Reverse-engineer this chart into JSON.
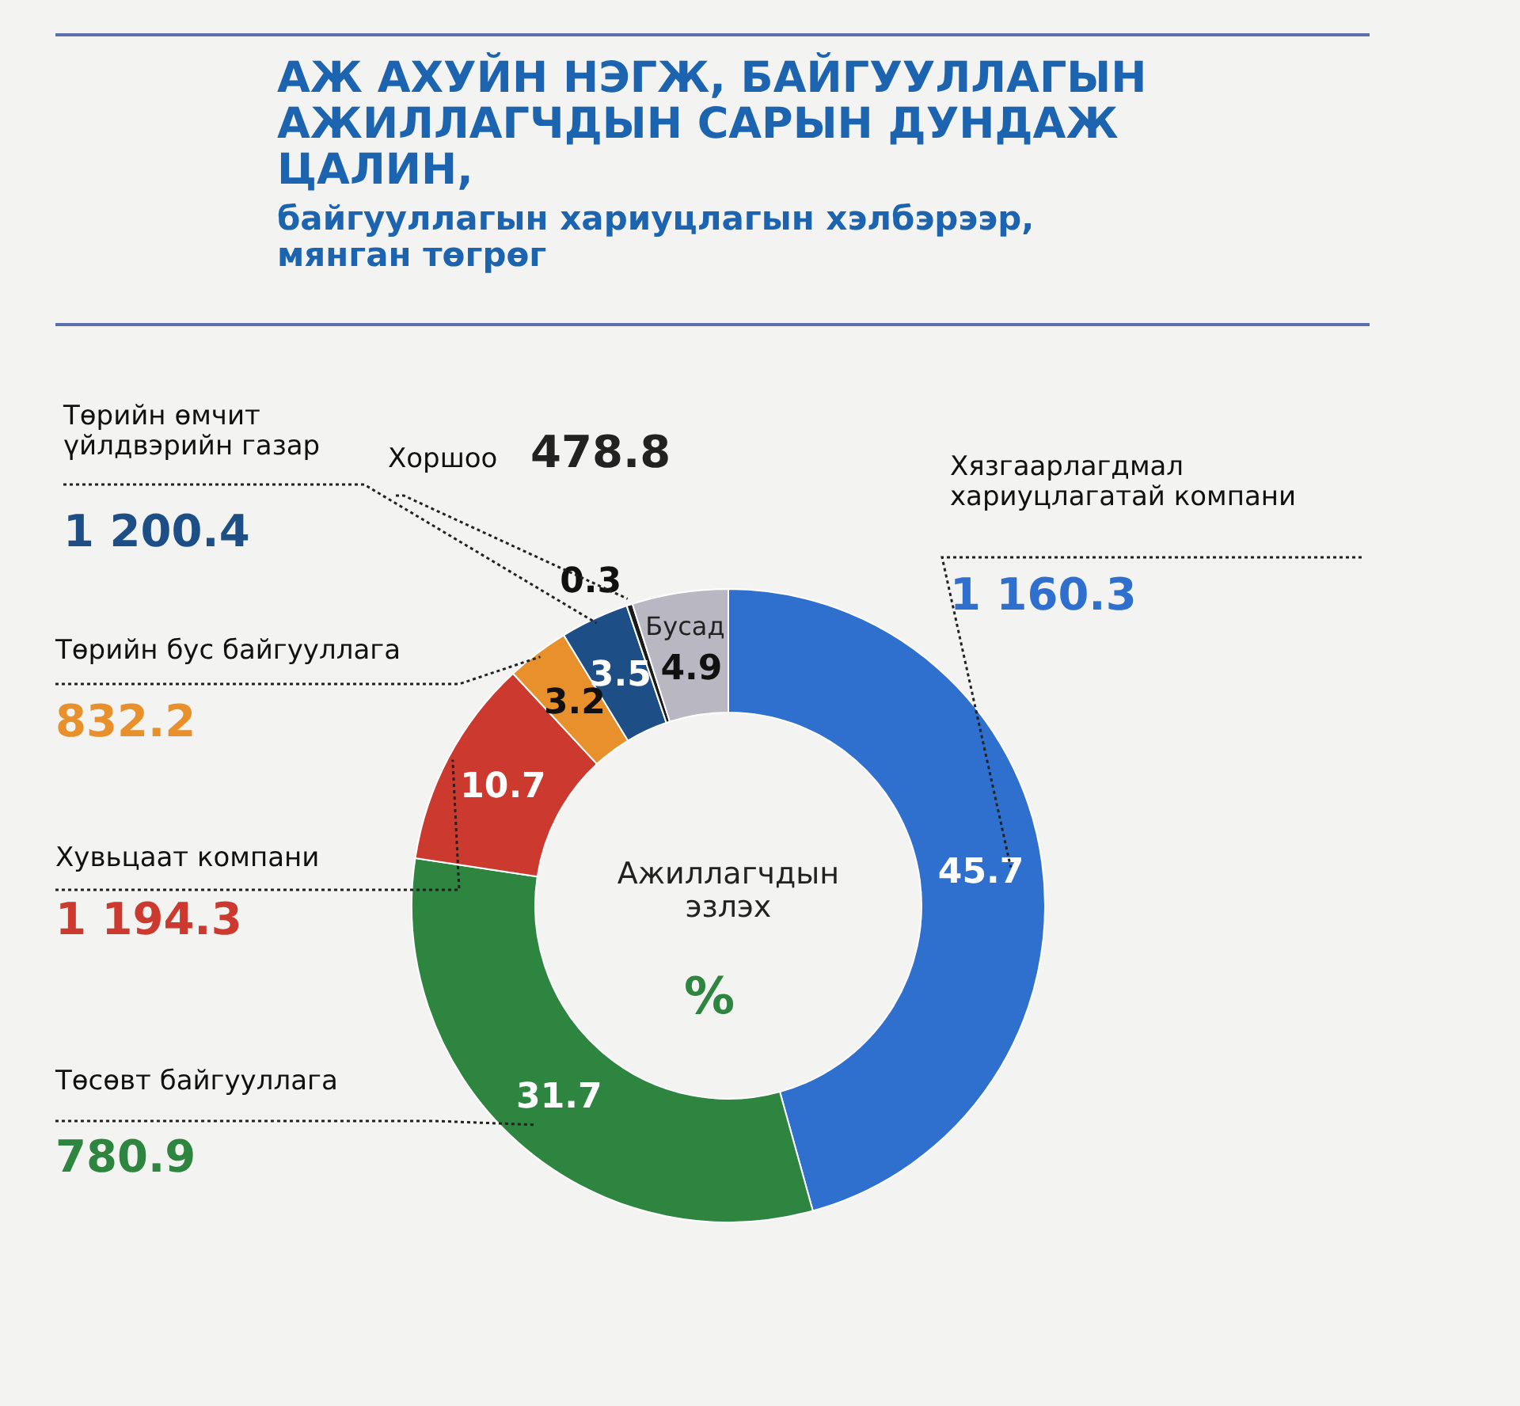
{
  "chart_data": {
    "type": "donut",
    "title": "АЖ АХУЙН НЭГЖ, БАЙГУУЛЛАГЫН АЖИЛЛАГЧДЫН САРЫН ДУНДАЖ ЦАЛИН,",
    "subtitle": "байгууллагын хариуцлагын хэлбэрээр, мянган төгрөг",
    "categories": [
      "Хязгаарлагдмал хариуцлагатай компани",
      "Төсөвт байгууллага",
      "Хувьцаат компани",
      "Төрийн бус байгууллага",
      "Төрийн өмчит үйлдвэрийн газар",
      "Хоршоо",
      "Бусад"
    ],
    "values": [
      45.7,
      31.7,
      10.7,
      3.2,
      3.5,
      0.3,
      4.9
    ],
    "colors": [
      "#2f6fce",
      "#2e8540",
      "#cc3a2f",
      "#e8912c",
      "#1d4f86",
      "#1a1a1a",
      "#b9b8c2"
    ],
    "data_labels": true,
    "annotations": [
      {
        "text": "1 160.3",
        "x": "Хязгаарлагдмал хариуцлагатай компани"
      },
      {
        "text": "780.9",
        "x": "Төсөвт байгууллага"
      },
      {
        "text": "1 194.3",
        "x": "Хувьцаат компани"
      },
      {
        "text": "832.2",
        "x": "Төрийн бус байгууллага"
      },
      {
        "text": "1 200.4",
        "x": "Төрийн өмчит үйлдвэрийн газар"
      },
      {
        "text": "478.8",
        "x": "Хоршоо"
      },
      "Ажиллагчдын эзлэх",
      "%"
    ]
  }
}
